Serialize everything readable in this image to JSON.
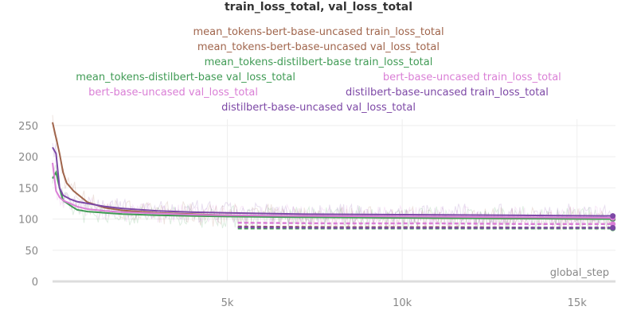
{
  "chart_data": {
    "type": "line",
    "title": "train_loss_total, val_loss_total",
    "xlabel": "global_step",
    "ylabel": "",
    "xlim": [
      0,
      16100
    ],
    "ylim": [
      0,
      260
    ],
    "x_ticks": [
      5000,
      10000,
      15000
    ],
    "x_tick_labels": [
      "5k",
      "10k",
      "15k"
    ],
    "y_ticks": [
      0,
      50,
      100,
      150,
      200,
      250
    ],
    "y_tick_labels": [
      "0",
      "50",
      "100",
      "150",
      "200",
      "250"
    ],
    "grid": true,
    "legend_position": "top",
    "series": [
      {
        "name": "mean_tokens-bert-base-uncased train_loss_total",
        "color": "#a0654c",
        "style": "solid",
        "x": [
          0,
          100,
          200,
          300,
          400,
          600,
          800,
          1000,
          1500,
          2000,
          3000,
          4000,
          5000,
          7000,
          10000,
          13000,
          16000
        ],
        "y": [
          255,
          230,
          205,
          175,
          158,
          145,
          136,
          127,
          118,
          114,
          110,
          108,
          106,
          104,
          102,
          101,
          100
        ]
      },
      {
        "name": "mean_tokens-bert-base-uncased val_loss_total",
        "color": "#a0654c",
        "style": "dashed",
        "x": [
          5300,
          8000,
          11000,
          14000,
          16000
        ],
        "y": [
          88,
          87,
          87,
          86,
          86
        ]
      },
      {
        "name": "mean_tokens-distilbert-base train_loss_total",
        "color": "#409b55",
        "style": "solid",
        "x": [
          0,
          100,
          200,
          300,
          500,
          700,
          1000,
          1500,
          2000,
          3000,
          4000,
          5000,
          7000,
          10000,
          13000,
          16000
        ],
        "y": [
          165,
          175,
          150,
          130,
          122,
          115,
          112,
          110,
          108,
          106,
          105,
          104,
          103,
          102,
          101,
          100
        ]
      },
      {
        "name": "mean_tokens-distilbert-base val_loss_total",
        "color": "#409b55",
        "style": "dashed",
        "x": [
          5300,
          8000,
          11000,
          14000,
          16000
        ],
        "y": [
          85,
          85,
          85,
          85,
          85
        ]
      },
      {
        "name": "bert-base-uncased train_loss_total",
        "color": "#da7fd6",
        "style": "solid",
        "x": [
          0,
          100,
          200,
          300,
          500,
          700,
          1000,
          1500,
          2000,
          3000,
          4000,
          5000,
          7000,
          10000,
          13000,
          16000
        ],
        "y": [
          190,
          145,
          135,
          130,
          125,
          120,
          116,
          113,
          111,
          109,
          107,
          106,
          105,
          104,
          103,
          102
        ]
      },
      {
        "name": "bert-base-uncased val_loss_total",
        "color": "#da7fd6",
        "style": "dashed",
        "x": [
          5300,
          8000,
          11000,
          14000,
          16000
        ],
        "y": [
          94,
          93,
          93,
          92,
          92
        ]
      },
      {
        "name": "distilbert-base-uncased train_loss_total",
        "color": "#7d48a6",
        "style": "solid",
        "x": [
          0,
          100,
          200,
          300,
          500,
          700,
          1000,
          1500,
          2000,
          3000,
          4000,
          5000,
          7000,
          10000,
          13000,
          16000
        ],
        "y": [
          215,
          205,
          150,
          138,
          132,
          128,
          125,
          120,
          117,
          113,
          111,
          110,
          108,
          107,
          106,
          105
        ]
      },
      {
        "name": "distilbert-base-uncased val_loss_total",
        "color": "#7d48a6",
        "style": "dashed",
        "x": [
          5300,
          8000,
          11000,
          14000,
          16000
        ],
        "y": [
          87,
          86,
          86,
          86,
          86
        ]
      }
    ],
    "legend_rows": [
      [
        0
      ],
      [
        1
      ],
      [
        2
      ],
      [
        3,
        4
      ],
      [
        5,
        6
      ],
      [
        7
      ]
    ]
  }
}
